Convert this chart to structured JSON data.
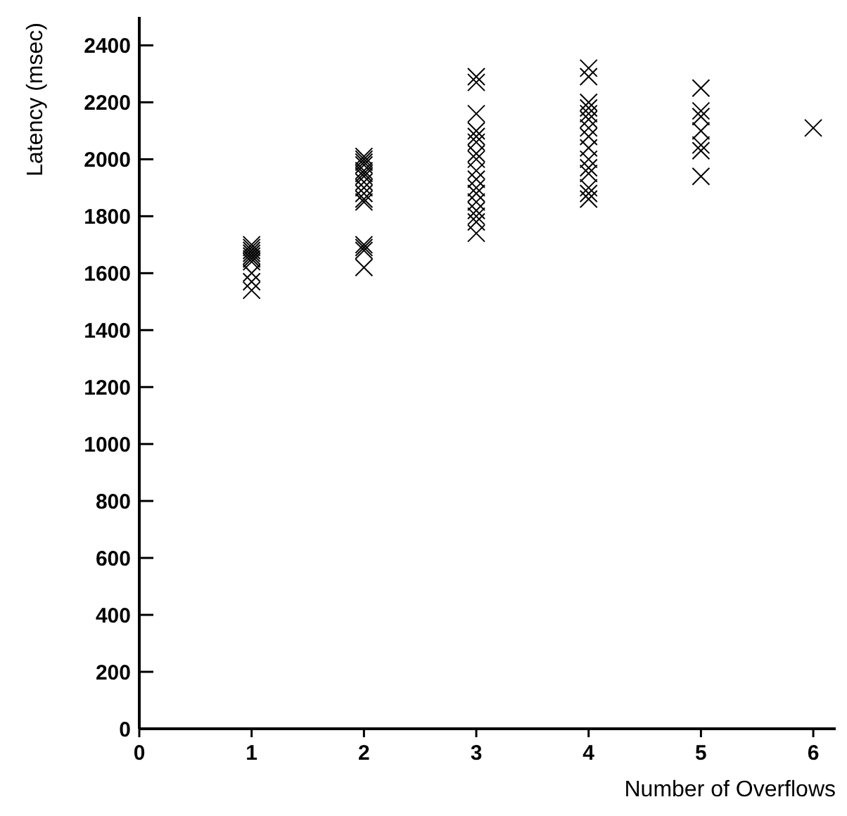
{
  "chart_data": {
    "type": "scatter",
    "xlabel": "Number of Overflows",
    "ylabel": "Latency (msec)",
    "xlim": [
      0,
      6.2
    ],
    "xticks": [
      0,
      1,
      2,
      3,
      4,
      5,
      6
    ],
    "ylim": [
      0,
      2500
    ],
    "yticks": [
      0,
      200,
      400,
      600,
      800,
      1000,
      1200,
      1400,
      1600,
      1800,
      2000,
      2200,
      2400
    ],
    "marker": "cross",
    "grid": false,
    "series": [
      {
        "color": "#000000",
        "x": [
          1,
          1,
          1,
          1,
          1,
          1,
          1,
          1,
          1,
          1,
          2,
          2,
          2,
          2,
          2,
          2,
          2,
          2,
          2,
          2,
          2,
          2,
          2,
          2,
          2,
          2,
          3,
          3,
          3,
          3,
          3,
          3,
          3,
          3,
          3,
          3,
          3,
          3,
          3,
          3,
          3,
          3,
          3,
          4,
          4,
          4,
          4,
          4,
          4,
          4,
          4,
          4,
          4,
          4,
          4,
          4,
          4,
          4,
          5,
          5,
          5,
          5,
          5,
          5,
          5,
          6
        ],
        "values": [
          1700,
          1690,
          1680,
          1670,
          1660,
          1650,
          1640,
          1600,
          1570,
          1540,
          2010,
          2000,
          1990,
          1980,
          1960,
          1950,
          1940,
          1920,
          1900,
          1880,
          1860,
          1850,
          1700,
          1690,
          1680,
          1620,
          2290,
          2270,
          2160,
          2100,
          2080,
          2060,
          2020,
          2000,
          1960,
          1930,
          1900,
          1880,
          1850,
          1820,
          1800,
          1780,
          1740,
          2320,
          2290,
          2200,
          2180,
          2160,
          2140,
          2110,
          2080,
          2040,
          2000,
          1970,
          1950,
          1900,
          1880,
          1860,
          2250,
          2170,
          2150,
          2100,
          2050,
          2030,
          1940,
          2110
        ]
      }
    ]
  }
}
